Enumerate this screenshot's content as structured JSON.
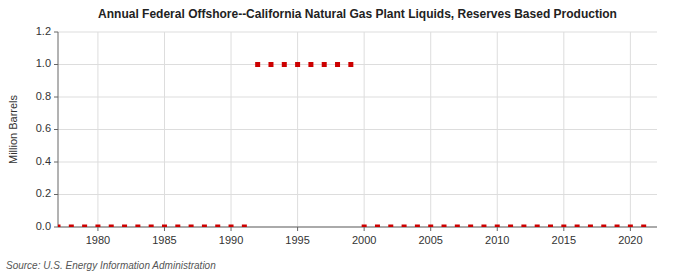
{
  "chart_data": {
    "type": "scatter",
    "title": "Annual Federal Offshore--California Natural Gas Plant Liquids, Reserves Based Production",
    "y_label": "Million Barrels",
    "annotations": [
      "Source: U.S. Energy Information Administration"
    ],
    "x": [
      1977,
      1978,
      1979,
      1980,
      1981,
      1982,
      1983,
      1984,
      1985,
      1986,
      1987,
      1988,
      1989,
      1990,
      1991,
      1992,
      1993,
      1994,
      1995,
      1996,
      1997,
      1998,
      1999,
      2000,
      2001,
      2002,
      2003,
      2004,
      2005,
      2006,
      2007,
      2008,
      2009,
      2010,
      2011,
      2012,
      2013,
      2014,
      2015,
      2016,
      2017,
      2018,
      2019,
      2020,
      2021
    ],
    "values": [
      0.0,
      0.0,
      0.0,
      0.0,
      0.0,
      0.0,
      0.0,
      0.0,
      0.0,
      0.0,
      0.0,
      0.0,
      0.0,
      0.0,
      0.0,
      1.0,
      1.0,
      1.0,
      1.0,
      1.0,
      1.0,
      1.0,
      1.0,
      0.0,
      0.0,
      0.0,
      0.0,
      0.0,
      0.0,
      0.0,
      0.0,
      0.0,
      0.0,
      0.0,
      0.0,
      0.0,
      0.0,
      0.0,
      0.0,
      0.0,
      0.0,
      0.0,
      0.0,
      0.0,
      0.0
    ],
    "color": "#cc0000",
    "marker": "square",
    "line_style": "none",
    "xlim": [
      1977,
      2022
    ],
    "xticks": [
      1980,
      1985,
      1990,
      1995,
      2000,
      2005,
      2010,
      2015,
      2020
    ],
    "ylim": [
      0.0,
      1.2
    ],
    "yticks": [
      {
        "value": 0.0,
        "label": "0.0"
      },
      0.2,
      0.4,
      0.6,
      0.8,
      {
        "value": 1.0,
        "label": "1.0"
      },
      1.2
    ],
    "grid": true
  }
}
